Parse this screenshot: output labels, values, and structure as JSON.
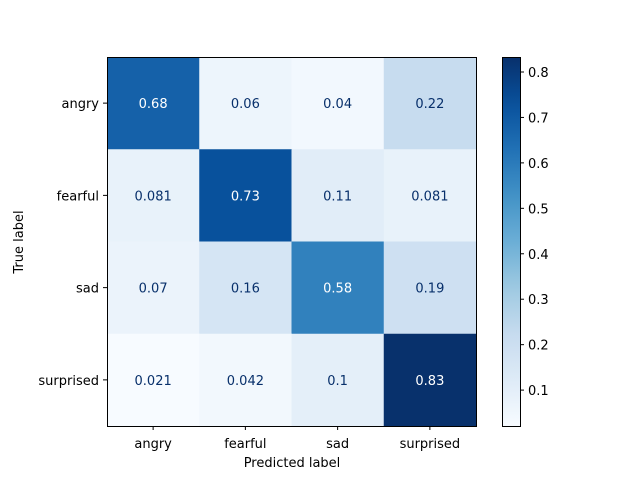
{
  "chart_data": {
    "type": "heatmap",
    "title": "",
    "xlabel": "Predicted label",
    "ylabel": "True label",
    "x_categories": [
      "angry",
      "fearful",
      "sad",
      "surprised"
    ],
    "y_categories": [
      "angry",
      "fearful",
      "sad",
      "surprised"
    ],
    "values": [
      [
        0.68,
        0.06,
        0.04,
        0.22
      ],
      [
        0.081,
        0.73,
        0.11,
        0.081
      ],
      [
        0.07,
        0.16,
        0.58,
        0.19
      ],
      [
        0.021,
        0.042,
        0.1,
        0.83
      ]
    ],
    "value_labels": [
      [
        "0.68",
        "0.06",
        "0.04",
        "0.22"
      ],
      [
        "0.081",
        "0.73",
        "0.11",
        "0.081"
      ],
      [
        "0.07",
        "0.16",
        "0.58",
        "0.19"
      ],
      [
        "0.021",
        "0.042",
        "0.1",
        "0.83"
      ]
    ],
    "colormap": "Blues",
    "colorbar": {
      "min": 0.021,
      "max": 0.833,
      "ticks": [
        0.1,
        0.2,
        0.3,
        0.4,
        0.5,
        0.6,
        0.7,
        0.8
      ],
      "tick_labels": [
        "0.1",
        "0.2",
        "0.3",
        "0.4",
        "0.5",
        "0.6",
        "0.7",
        "0.8"
      ]
    },
    "grid": false,
    "legend": "colorbar-right"
  }
}
